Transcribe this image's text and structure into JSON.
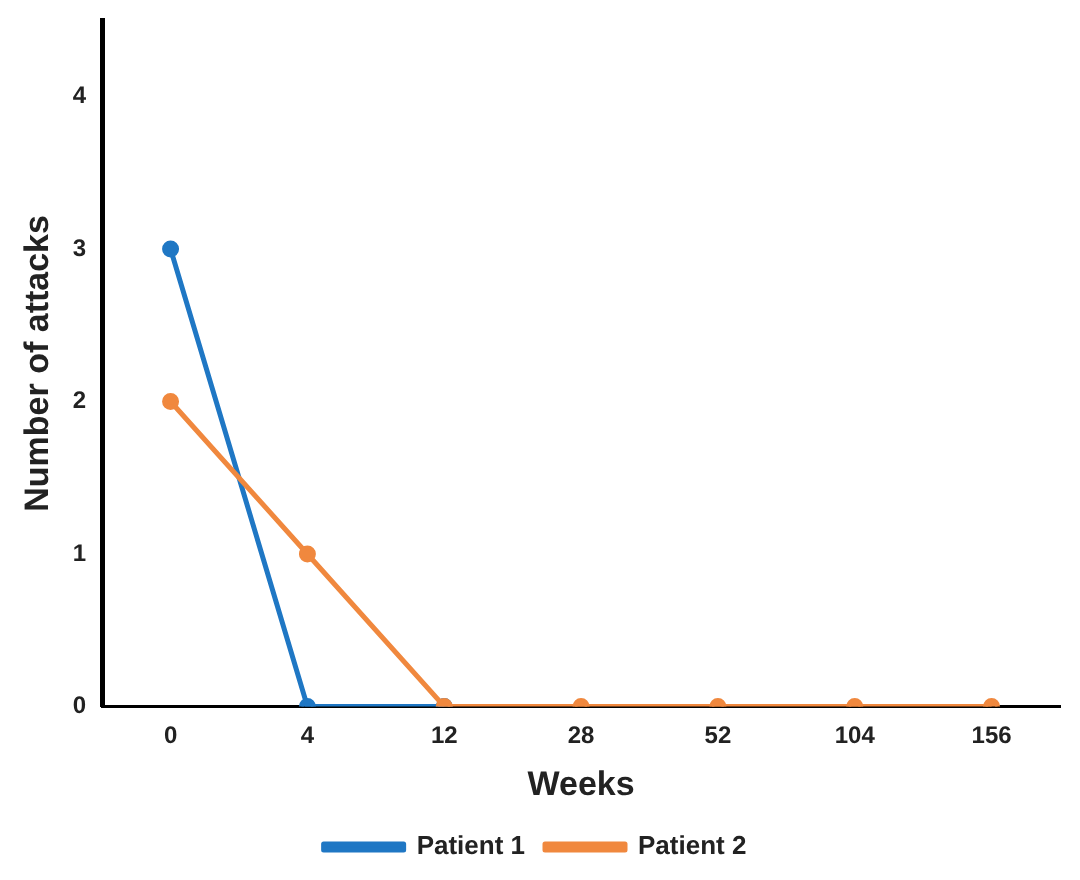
{
  "chart_data": {
    "type": "line",
    "xlabel": "Weeks",
    "ylabel": "Number of attacks",
    "categories": [
      "0",
      "4",
      "12",
      "28",
      "52",
      "104",
      "156"
    ],
    "series": [
      {
        "name": "Patient 1",
        "color": "#1f77c4",
        "values": [
          3,
          0,
          0,
          null,
          null,
          null,
          null
        ]
      },
      {
        "name": "Patient 2",
        "color": "#f0883e",
        "values": [
          2,
          1,
          0,
          0,
          0,
          0,
          0
        ]
      }
    ],
    "ylim": [
      0,
      4.5
    ],
    "yticks": [
      0,
      1,
      2,
      3,
      4
    ],
    "grid": false,
    "legend": "bottom",
    "marker": "circle",
    "line_style": "solid"
  }
}
